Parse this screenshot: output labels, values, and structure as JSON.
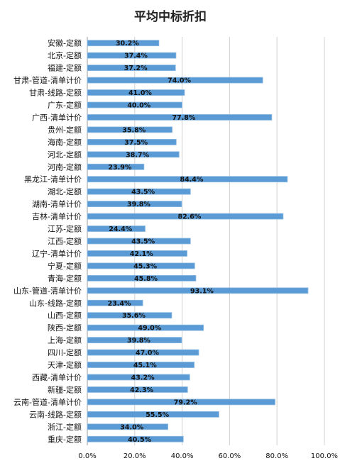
{
  "chart_data": {
    "type": "bar",
    "orientation": "horizontal",
    "title": "平均中标折扣",
    "categories": [
      "安徽-定额",
      "北京-定额",
      "福建-定额",
      "甘肃-管道-清单计价",
      "甘肃-线路-定额",
      "广东-定额",
      "广西-清单计价",
      "贵州-定额",
      "海南-定额",
      "河北-定额",
      "河南-定额",
      "黑龙江-清单计价",
      "湖北-定额",
      "湖南-清单计价",
      "吉林-清单计价",
      "江苏-定额",
      "江西-定额",
      "辽宁-清单计价",
      "宁夏-定额",
      "青海-定额",
      "山东-管道-清单计价",
      "山东-线路-定额",
      "山西-定额",
      "陕西-定额",
      "上海-定额",
      "四川-定额",
      "天津-定额",
      "西藏-清单计价",
      "新疆-定额",
      "云南-管道-清单计价",
      "云南-线路-定额",
      "浙江-定额",
      "重庆-定额"
    ],
    "values": [
      30.2,
      37.4,
      37.2,
      74.0,
      41.0,
      40.0,
      77.8,
      35.8,
      37.5,
      38.7,
      23.9,
      84.4,
      43.5,
      39.8,
      82.6,
      24.4,
      43.5,
      42.1,
      45.3,
      45.8,
      93.1,
      23.4,
      35.6,
      49.0,
      39.8,
      47.0,
      45.1,
      43.2,
      42.3,
      79.2,
      55.5,
      34.0,
      40.5
    ],
    "value_labels": [
      "30.2%",
      "37.4%",
      "37.2%",
      "74.0%",
      "41.0%",
      "40.0%",
      "77.8%",
      "35.8%",
      "37.5%",
      "38.7%",
      "23.9%",
      "84.4%",
      "43.5%",
      "39.8%",
      "82.6%",
      "24.4%",
      "43.5%",
      "42.1%",
      "45.3%",
      "45.8%",
      "93.1%",
      "23.4%",
      "35.6%",
      "49.0%",
      "39.8%",
      "47.0%",
      "45.1%",
      "43.2%",
      "42.3%",
      "79.2%",
      "55.5%",
      "34.0%",
      "40.5%"
    ],
    "xlim": [
      0,
      100
    ],
    "x_ticks": [
      "0.0%",
      "20.0%",
      "40.0%",
      "60.0%",
      "80.0%",
      "100.0%"
    ],
    "grid": "vertical",
    "bar_color": "#5b9bd5",
    "bar_edge_color": "#8fbbe3",
    "grid_color": "#d0d0d0"
  }
}
